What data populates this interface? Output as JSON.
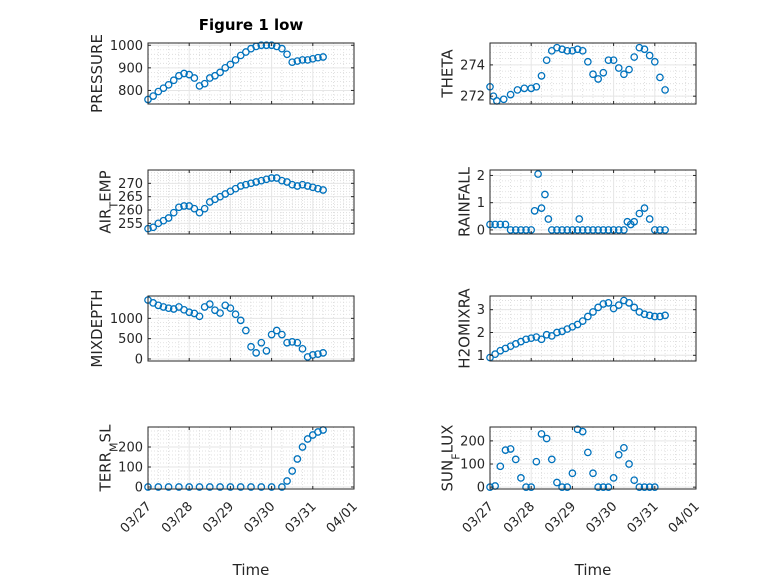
{
  "figure": {
    "title": "Figure 1 low",
    "marker_color": "#0072BD",
    "grid_color": "#d9d9d9"
  },
  "x_axis": {
    "label": "Time",
    "tick_labels": [
      "03/27",
      "03/28",
      "03/29",
      "03/30",
      "03/31",
      "04/01"
    ],
    "range": [
      "03/27",
      "04/01"
    ]
  },
  "chart_data": [
    {
      "type": "scatter",
      "ylabel": "PRESSURE",
      "ylim": [
        740,
        1010
      ],
      "yticks": [
        800,
        900,
        1000
      ],
      "grid": true,
      "x": [
        "03/27 00:00",
        "03/27 03:00",
        "03/27 06:00",
        "03/27 09:00",
        "03/27 12:00",
        "03/27 15:00",
        "03/27 18:00",
        "03/27 21:00",
        "03/28 00:00",
        "03/28 03:00",
        "03/28 06:00",
        "03/28 09:00",
        "03/28 12:00",
        "03/28 15:00",
        "03/28 18:00",
        "03/28 21:00",
        "03/29 00:00",
        "03/29 03:00",
        "03/29 06:00",
        "03/29 09:00",
        "03/29 12:00",
        "03/29 15:00",
        "03/29 18:00",
        "03/29 21:00",
        "03/30 00:00",
        "03/30 03:00",
        "03/30 06:00",
        "03/30 09:00",
        "03/30 12:00",
        "03/30 15:00",
        "03/30 18:00",
        "03/30 21:00",
        "03/31 00:00",
        "03/31 03:00",
        "03/31 06:00"
      ],
      "y": [
        760,
        775,
        795,
        810,
        825,
        845,
        865,
        875,
        870,
        855,
        820,
        830,
        855,
        865,
        880,
        900,
        915,
        935,
        955,
        970,
        985,
        995,
        1000,
        1000,
        1000,
        995,
        985,
        960,
        925,
        930,
        935,
        935,
        940,
        945,
        948
      ]
    },
    {
      "type": "scatter",
      "ylabel": "THETA",
      "ylim": [
        271.5,
        275.4
      ],
      "yticks": [
        272,
        274
      ],
      "grid": true,
      "x": [
        "03/27 00:00",
        "03/27 02:00",
        "03/27 04:00",
        "03/27 08:00",
        "03/27 12:00",
        "03/27 16:00",
        "03/27 20:00",
        "03/28 00:00",
        "03/28 03:00",
        "03/28 06:00",
        "03/28 09:00",
        "03/28 12:00",
        "03/28 15:00",
        "03/28 18:00",
        "03/28 21:00",
        "03/29 00:00",
        "03/29 03:00",
        "03/29 06:00",
        "03/29 09:00",
        "03/29 12:00",
        "03/29 15:00",
        "03/29 18:00",
        "03/29 21:00",
        "03/30 00:00",
        "03/30 03:00",
        "03/30 06:00",
        "03/30 09:00",
        "03/30 12:00",
        "03/30 15:00",
        "03/30 18:00",
        "03/30 21:00",
        "03/31 00:00",
        "03/31 03:00",
        "03/31 06:00"
      ],
      "y": [
        272.6,
        272.0,
        271.7,
        271.8,
        272.1,
        272.4,
        272.5,
        272.5,
        272.6,
        273.3,
        274.3,
        274.9,
        275.1,
        275.0,
        274.9,
        274.9,
        275.0,
        274.9,
        274.2,
        273.4,
        273.1,
        273.5,
        274.3,
        274.3,
        273.8,
        273.4,
        273.7,
        274.5,
        275.1,
        275.0,
        274.6,
        274.2,
        273.2,
        272.4
      ]
    },
    {
      "type": "scatter",
      "ylabel": "AIR_TEMP",
      "ylim": [
        251,
        275
      ],
      "yticks": [
        255,
        260,
        265,
        270
      ],
      "grid": true,
      "x": [
        "03/27 00:00",
        "03/27 03:00",
        "03/27 06:00",
        "03/27 09:00",
        "03/27 12:00",
        "03/27 15:00",
        "03/27 18:00",
        "03/27 21:00",
        "03/28 00:00",
        "03/28 03:00",
        "03/28 06:00",
        "03/28 09:00",
        "03/28 12:00",
        "03/28 15:00",
        "03/28 18:00",
        "03/28 21:00",
        "03/29 00:00",
        "03/29 03:00",
        "03/29 06:00",
        "03/29 09:00",
        "03/29 12:00",
        "03/29 15:00",
        "03/29 18:00",
        "03/29 21:00",
        "03/30 00:00",
        "03/30 03:00",
        "03/30 06:00",
        "03/30 09:00",
        "03/30 12:00",
        "03/30 15:00",
        "03/30 18:00",
        "03/30 21:00",
        "03/31 00:00",
        "03/31 03:00",
        "03/31 06:00"
      ],
      "y": [
        253,
        253.5,
        255,
        256,
        257,
        259,
        261,
        261.5,
        261.5,
        260.5,
        259,
        260.5,
        263,
        264,
        265,
        266,
        267,
        268,
        269,
        269.5,
        270,
        270.5,
        271,
        271.5,
        272,
        272,
        271,
        270.5,
        269.5,
        269,
        269.5,
        269,
        268.5,
        268,
        267.5
      ]
    },
    {
      "type": "scatter",
      "ylabel": "RAINFALL",
      "ylim": [
        -0.15,
        2.2
      ],
      "yticks": [
        0,
        1,
        2
      ],
      "grid": true,
      "x": [
        "03/27 00:00",
        "03/27 03:00",
        "03/27 06:00",
        "03/27 09:00",
        "03/27 12:00",
        "03/27 15:00",
        "03/27 18:00",
        "03/27 21:00",
        "03/28 00:00",
        "03/28 02:00",
        "03/28 04:00",
        "03/28 06:00",
        "03/28 08:00",
        "03/28 10:00",
        "03/28 12:00",
        "03/28 15:00",
        "03/28 18:00",
        "03/28 21:00",
        "03/29 00:00",
        "03/29 03:00",
        "03/29 04:00",
        "03/29 06:00",
        "03/29 09:00",
        "03/29 12:00",
        "03/29 15:00",
        "03/29 18:00",
        "03/29 21:00",
        "03/30 00:00",
        "03/30 03:00",
        "03/30 06:00",
        "03/30 08:00",
        "03/30 10:00",
        "03/30 12:00",
        "03/30 15:00",
        "03/30 18:00",
        "03/30 21:00",
        "03/31 00:00",
        "03/31 03:00",
        "03/31 06:00"
      ],
      "y": [
        0.2,
        0.2,
        0.2,
        0.2,
        0,
        0,
        0,
        0,
        0,
        0.7,
        2.05,
        0.8,
        1.3,
        0.4,
        0,
        0,
        0,
        0,
        0,
        0,
        0.4,
        0,
        0,
        0,
        0,
        0,
        0,
        0,
        0,
        0,
        0.3,
        0.2,
        0.3,
        0.6,
        0.8,
        0.4,
        0,
        0,
        0
      ]
    },
    {
      "type": "scatter",
      "ylabel": "MIXDEPTH",
      "ylim": [
        -50,
        1550
      ],
      "yticks": [
        0,
        500,
        1000
      ],
      "grid": true,
      "x": [
        "03/27 00:00",
        "03/27 03:00",
        "03/27 06:00",
        "03/27 09:00",
        "03/27 12:00",
        "03/27 15:00",
        "03/27 18:00",
        "03/27 21:00",
        "03/28 00:00",
        "03/28 03:00",
        "03/28 06:00",
        "03/28 09:00",
        "03/28 12:00",
        "03/28 15:00",
        "03/28 18:00",
        "03/28 21:00",
        "03/29 00:00",
        "03/29 03:00",
        "03/29 06:00",
        "03/29 09:00",
        "03/29 12:00",
        "03/29 15:00",
        "03/29 18:00",
        "03/29 21:00",
        "03/30 00:00",
        "03/30 03:00",
        "03/30 06:00",
        "03/30 09:00",
        "03/30 12:00",
        "03/30 15:00",
        "03/30 18:00",
        "03/30 21:00",
        "03/31 00:00",
        "03/31 03:00",
        "03/31 06:00"
      ],
      "y": [
        1450,
        1380,
        1320,
        1280,
        1250,
        1230,
        1280,
        1210,
        1150,
        1120,
        1050,
        1280,
        1350,
        1200,
        1130,
        1320,
        1250,
        1100,
        950,
        700,
        300,
        150,
        400,
        200,
        600,
        700,
        600,
        400,
        420,
        400,
        250,
        50,
        100,
        120,
        150
      ]
    },
    {
      "type": "scatter",
      "ylabel": "H2OMIXRA",
      "ylim": [
        0.75,
        3.6
      ],
      "yticks": [
        1,
        2,
        3
      ],
      "grid": true,
      "x": [
        "03/27 00:00",
        "03/27 03:00",
        "03/27 06:00",
        "03/27 09:00",
        "03/27 12:00",
        "03/27 15:00",
        "03/27 18:00",
        "03/27 21:00",
        "03/28 00:00",
        "03/28 03:00",
        "03/28 06:00",
        "03/28 09:00",
        "03/28 12:00",
        "03/28 15:00",
        "03/28 18:00",
        "03/28 21:00",
        "03/29 00:00",
        "03/29 03:00",
        "03/29 06:00",
        "03/29 09:00",
        "03/29 12:00",
        "03/29 15:00",
        "03/29 18:00",
        "03/29 21:00",
        "03/30 00:00",
        "03/30 03:00",
        "03/30 06:00",
        "03/30 09:00",
        "03/30 12:00",
        "03/30 15:00",
        "03/30 18:00",
        "03/30 21:00",
        "03/31 00:00",
        "03/31 03:00",
        "03/31 06:00"
      ],
      "y": [
        0.9,
        1.05,
        1.2,
        1.3,
        1.4,
        1.5,
        1.6,
        1.7,
        1.75,
        1.8,
        1.7,
        1.9,
        1.85,
        2.0,
        2.05,
        2.15,
        2.25,
        2.35,
        2.5,
        2.7,
        2.9,
        3.1,
        3.25,
        3.3,
        3.05,
        3.2,
        3.4,
        3.3,
        3.1,
        2.9,
        2.8,
        2.75,
        2.7,
        2.7,
        2.75
      ]
    },
    {
      "type": "scatter",
      "ylabel": "TERR_MSL",
      "ylim": [
        -10,
        300
      ],
      "yticks": [
        0,
        100,
        200
      ],
      "grid": true,
      "x": [
        "03/27 00:00",
        "03/27 06:00",
        "03/27 12:00",
        "03/27 18:00",
        "03/28 00:00",
        "03/28 06:00",
        "03/28 12:00",
        "03/28 18:00",
        "03/29 00:00",
        "03/29 06:00",
        "03/29 12:00",
        "03/29 18:00",
        "03/30 00:00",
        "03/30 06:00",
        "03/30 09:00",
        "03/30 12:00",
        "03/30 15:00",
        "03/30 18:00",
        "03/30 21:00",
        "03/31 00:00",
        "03/31 03:00",
        "03/31 06:00"
      ],
      "y": [
        0,
        0,
        0,
        0,
        0,
        0,
        0,
        0,
        0,
        0,
        0,
        0,
        0,
        0,
        30,
        80,
        140,
        200,
        240,
        260,
        275,
        285
      ]
    },
    {
      "type": "scatter",
      "ylabel": "SUN_FLUX",
      "ylim": [
        -8,
        260
      ],
      "yticks": [
        0,
        100,
        200
      ],
      "grid": true,
      "x": [
        "03/27 00:00",
        "03/27 03:00",
        "03/27 06:00",
        "03/27 09:00",
        "03/27 12:00",
        "03/27 15:00",
        "03/27 18:00",
        "03/27 21:00",
        "03/28 00:00",
        "03/28 03:00",
        "03/28 06:00",
        "03/28 09:00",
        "03/28 12:00",
        "03/28 15:00",
        "03/28 18:00",
        "03/28 21:00",
        "03/29 00:00",
        "03/29 03:00",
        "03/29 06:00",
        "03/29 09:00",
        "03/29 12:00",
        "03/29 15:00",
        "03/29 18:00",
        "03/29 21:00",
        "03/30 00:00",
        "03/30 03:00",
        "03/30 06:00",
        "03/30 09:00",
        "03/30 12:00",
        "03/30 15:00",
        "03/30 18:00",
        "03/30 21:00",
        "03/31 00:00"
      ],
      "y": [
        0,
        5,
        90,
        160,
        165,
        120,
        40,
        0,
        0,
        110,
        230,
        210,
        120,
        20,
        0,
        0,
        60,
        250,
        240,
        150,
        60,
        0,
        0,
        0,
        40,
        140,
        170,
        100,
        30,
        0,
        0,
        0,
        0
      ]
    }
  ]
}
